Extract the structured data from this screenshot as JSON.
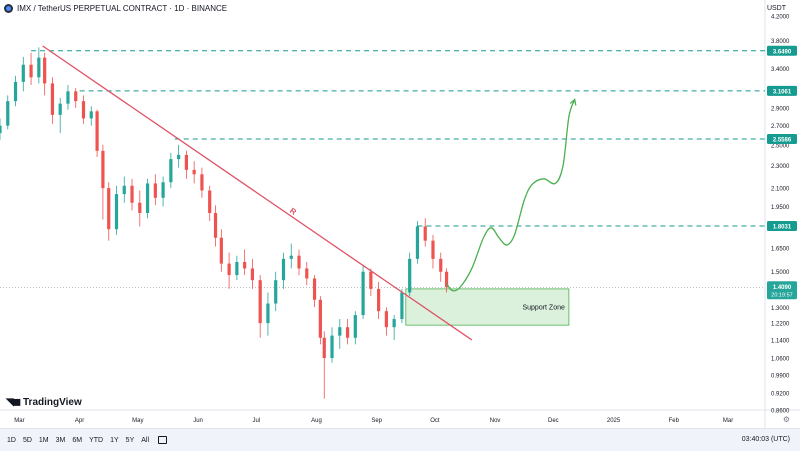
{
  "header": {
    "title": "IMX / TetherUS PERPETUAL CONTRACT · 1D · BINANCE",
    "logo_icon": "imx-logo-icon"
  },
  "currency": "USDT",
  "brand": {
    "name": "TradingView",
    "icon": "tradingview-logo-icon"
  },
  "bottombar": {
    "timeframes": [
      "1D",
      "5D",
      "1M",
      "3M",
      "6M",
      "YTD",
      "1Y",
      "5Y",
      "All"
    ],
    "calendar_icon": "calendar-icon",
    "clock": "03:40:03 (UTC)"
  },
  "settings_icon": "gear-icon",
  "chart_data": {
    "type": "candlestick",
    "y_scale": "log",
    "ylim": [
      0.86,
      4.3
    ],
    "y_ticks": [
      4.2,
      3.8,
      3.4,
      3.1,
      2.9,
      2.7,
      2.5,
      2.3,
      2.1,
      1.95,
      1.8,
      1.65,
      1.5,
      1.4,
      1.3,
      1.22,
      1.14,
      1.06,
      0.99,
      0.92,
      0.86
    ],
    "y_tick_labels": [
      "4.2000",
      "3.8000",
      "3.4000",
      "3.1000",
      "2.9000",
      "2.7000",
      "2.5000",
      "2.3000",
      "2.1000",
      "1.9500",
      "1.8000",
      "1.6500",
      "1.5000",
      "1.4000",
      "1.3000",
      "1.2200",
      "1.1400",
      "1.0600",
      "0.9900",
      "0.9200",
      "0.8600"
    ],
    "x_ticks": [
      "Mar",
      "Apr",
      "May",
      "Jun",
      "Jul",
      "Aug",
      "Sep",
      "Oct",
      "Nov",
      "Dec",
      "2025",
      "Feb",
      "Mar"
    ],
    "x_range": [
      "2024-02-20",
      "2025-03-20"
    ],
    "x_tick_dates": [
      "2024-03-01",
      "2024-04-01",
      "2024-05-01",
      "2024-06-01",
      "2024-07-01",
      "2024-08-01",
      "2024-09-01",
      "2024-10-01",
      "2024-11-01",
      "2024-12-01",
      "2025-01-01",
      "2025-02-01",
      "2025-03-01"
    ],
    "candles": [
      [
        "2024-02-20",
        2.62,
        2.78,
        2.55,
        2.7
      ],
      [
        "2024-02-24",
        2.7,
        3.05,
        2.66,
        2.98
      ],
      [
        "2024-02-28",
        2.98,
        3.3,
        2.92,
        3.22
      ],
      [
        "2024-03-03",
        3.22,
        3.56,
        3.1,
        3.45
      ],
      [
        "2024-03-07",
        3.45,
        3.62,
        3.18,
        3.28
      ],
      [
        "2024-03-11",
        3.28,
        3.7,
        3.2,
        3.55
      ],
      [
        "2024-03-14",
        3.55,
        3.62,
        3.05,
        3.2
      ],
      [
        "2024-03-18",
        3.2,
        3.28,
        2.72,
        2.82
      ],
      [
        "2024-03-22",
        2.82,
        3.02,
        2.62,
        2.95
      ],
      [
        "2024-03-26",
        2.95,
        3.18,
        2.88,
        3.1
      ],
      [
        "2024-03-30",
        3.1,
        3.14,
        2.9,
        2.98
      ],
      [
        "2024-04-03",
        2.98,
        3.05,
        2.72,
        2.78
      ],
      [
        "2024-04-07",
        2.78,
        2.92,
        2.7,
        2.86
      ],
      [
        "2024-04-10",
        2.86,
        2.88,
        2.38,
        2.44
      ],
      [
        "2024-04-13",
        2.44,
        2.5,
        1.85,
        2.1
      ],
      [
        "2024-04-16",
        2.1,
        2.15,
        1.7,
        1.78
      ],
      [
        "2024-04-20",
        1.78,
        2.12,
        1.74,
        2.05
      ],
      [
        "2024-04-24",
        2.05,
        2.2,
        1.98,
        2.12
      ],
      [
        "2024-04-28",
        2.12,
        2.18,
        1.92,
        1.98
      ],
      [
        "2024-05-02",
        1.98,
        2.08,
        1.8,
        1.9
      ],
      [
        "2024-05-06",
        1.9,
        2.18,
        1.86,
        2.14
      ],
      [
        "2024-05-10",
        2.14,
        2.22,
        1.96,
        2.02
      ],
      [
        "2024-05-14",
        2.02,
        2.2,
        1.95,
        2.15
      ],
      [
        "2024-05-18",
        2.15,
        2.42,
        2.1,
        2.36
      ],
      [
        "2024-05-22",
        2.36,
        2.5,
        2.28,
        2.4
      ],
      [
        "2024-05-26",
        2.4,
        2.44,
        2.18,
        2.26
      ],
      [
        "2024-05-30",
        2.26,
        2.34,
        2.14,
        2.22
      ],
      [
        "2024-06-03",
        2.22,
        2.28,
        2.02,
        2.08
      ],
      [
        "2024-06-07",
        2.08,
        2.12,
        1.84,
        1.9
      ],
      [
        "2024-06-10",
        1.9,
        1.96,
        1.66,
        1.72
      ],
      [
        "2024-06-13",
        1.72,
        1.78,
        1.5,
        1.55
      ],
      [
        "2024-06-17",
        1.55,
        1.62,
        1.4,
        1.48
      ],
      [
        "2024-06-21",
        1.48,
        1.6,
        1.45,
        1.56
      ],
      [
        "2024-06-25",
        1.56,
        1.64,
        1.48,
        1.52
      ],
      [
        "2024-06-29",
        1.52,
        1.58,
        1.4,
        1.45
      ],
      [
        "2024-07-03",
        1.45,
        1.48,
        1.15,
        1.22
      ],
      [
        "2024-07-07",
        1.22,
        1.38,
        1.16,
        1.32
      ],
      [
        "2024-07-11",
        1.32,
        1.5,
        1.28,
        1.45
      ],
      [
        "2024-07-15",
        1.45,
        1.62,
        1.4,
        1.58
      ],
      [
        "2024-07-19",
        1.58,
        1.68,
        1.52,
        1.6
      ],
      [
        "2024-07-23",
        1.6,
        1.64,
        1.48,
        1.52
      ],
      [
        "2024-07-27",
        1.52,
        1.56,
        1.42,
        1.46
      ],
      [
        "2024-07-31",
        1.46,
        1.48,
        1.3,
        1.34
      ],
      [
        "2024-08-03",
        1.34,
        1.36,
        1.12,
        1.15
      ],
      [
        "2024-08-05",
        1.15,
        1.18,
        0.9,
        1.06
      ],
      [
        "2024-08-09",
        1.06,
        1.2,
        1.04,
        1.16
      ],
      [
        "2024-08-13",
        1.16,
        1.24,
        1.1,
        1.2
      ],
      [
        "2024-08-17",
        1.2,
        1.24,
        1.12,
        1.15
      ],
      [
        "2024-08-21",
        1.15,
        1.28,
        1.12,
        1.26
      ],
      [
        "2024-08-25",
        1.26,
        1.54,
        1.24,
        1.5
      ],
      [
        "2024-08-29",
        1.5,
        1.52,
        1.36,
        1.4
      ],
      [
        "2024-09-02",
        1.4,
        1.44,
        1.24,
        1.28
      ],
      [
        "2024-09-06",
        1.28,
        1.3,
        1.16,
        1.2
      ],
      [
        "2024-09-10",
        1.2,
        1.26,
        1.14,
        1.24
      ],
      [
        "2024-09-14",
        1.24,
        1.4,
        1.22,
        1.38
      ],
      [
        "2024-09-18",
        1.38,
        1.62,
        1.36,
        1.58
      ],
      [
        "2024-09-22",
        1.58,
        1.84,
        1.55,
        1.8
      ],
      [
        "2024-09-26",
        1.8,
        1.86,
        1.66,
        1.7
      ],
      [
        "2024-09-30",
        1.7,
        1.74,
        1.52,
        1.58
      ],
      [
        "2024-10-04",
        1.58,
        1.62,
        1.44,
        1.5
      ],
      [
        "2024-10-07",
        1.5,
        1.52,
        1.38,
        1.41
      ]
    ],
    "trendline": {
      "from": [
        "2024-03-13",
        3.72
      ],
      "to": [
        "2024-10-20",
        1.14
      ],
      "label": "R",
      "color": "#e05264"
    },
    "levels": [
      {
        "value": 3.649,
        "label": "3.6490"
      },
      {
        "value": 3.1061,
        "label": "3.1061"
      },
      {
        "value": 2.5586,
        "label": "2.5586"
      },
      {
        "value": 1.8031,
        "label": "1.8031"
      }
    ],
    "current_price": {
      "value": 1.409,
      "label": "1.4090",
      "countdown": "20:19:57"
    },
    "support_zone": {
      "label": "Support Zone",
      "from": "2024-09-16",
      "to": "2024-12-09",
      "low": 1.21,
      "high": 1.4
    },
    "projection": [
      [
        "2024-10-07",
        1.43
      ],
      [
        "2024-10-10",
        1.39
      ],
      [
        "2024-10-14",
        1.41
      ],
      [
        "2024-10-20",
        1.52
      ],
      [
        "2024-10-26",
        1.72
      ],
      [
        "2024-10-30",
        1.79
      ],
      [
        "2024-11-03",
        1.72
      ],
      [
        "2024-11-07",
        1.67
      ],
      [
        "2024-11-11",
        1.74
      ],
      [
        "2024-11-16",
        2.0
      ],
      [
        "2024-11-20",
        2.13
      ],
      [
        "2024-11-26",
        2.18
      ],
      [
        "2024-12-02",
        2.14
      ],
      [
        "2024-12-06",
        2.3
      ],
      [
        "2024-12-09",
        2.8
      ],
      [
        "2024-12-12",
        3.0
      ]
    ],
    "colors": {
      "up": "#26a69a",
      "down": "#ef5350",
      "level": "#159b8f",
      "zone_fill": "#cfeccf",
      "zone_border": "#4caf50",
      "projection": "#4caf50"
    }
  }
}
